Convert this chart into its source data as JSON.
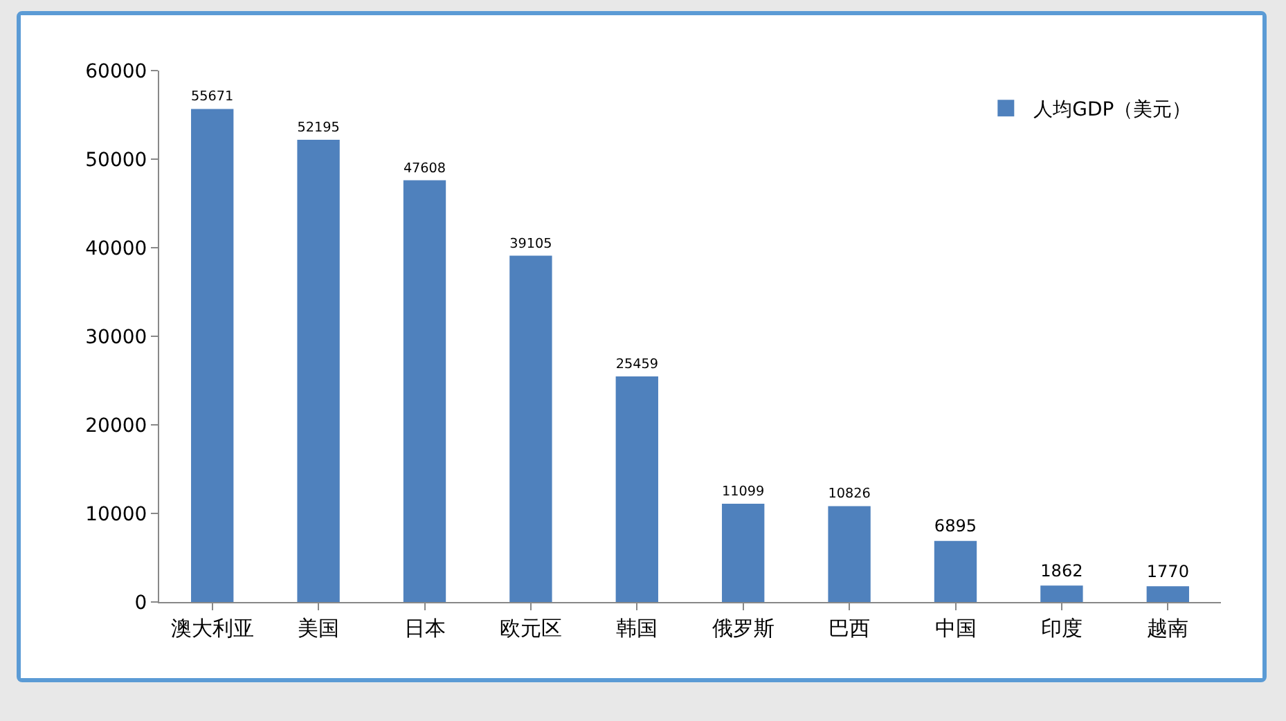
{
  "chart_data": {
    "type": "bar",
    "categories": [
      "澳大利亚",
      "美国",
      "日本",
      "欧元区",
      "韩国",
      "俄罗斯",
      "巴西",
      "中国",
      "印度",
      "越南"
    ],
    "series": [
      {
        "name": "人均GDP（美元）",
        "color": "#4f81bd",
        "values": [
          55671,
          52195,
          47608,
          39105,
          25459,
          11099,
          10826,
          6895,
          1862,
          1770
        ]
      }
    ],
    "ylim": [
      0,
      60000
    ],
    "yticks": [
      0,
      10000,
      20000,
      30000,
      40000,
      50000,
      60000
    ],
    "grid": false,
    "legend": "top right",
    "data_labels": true
  }
}
